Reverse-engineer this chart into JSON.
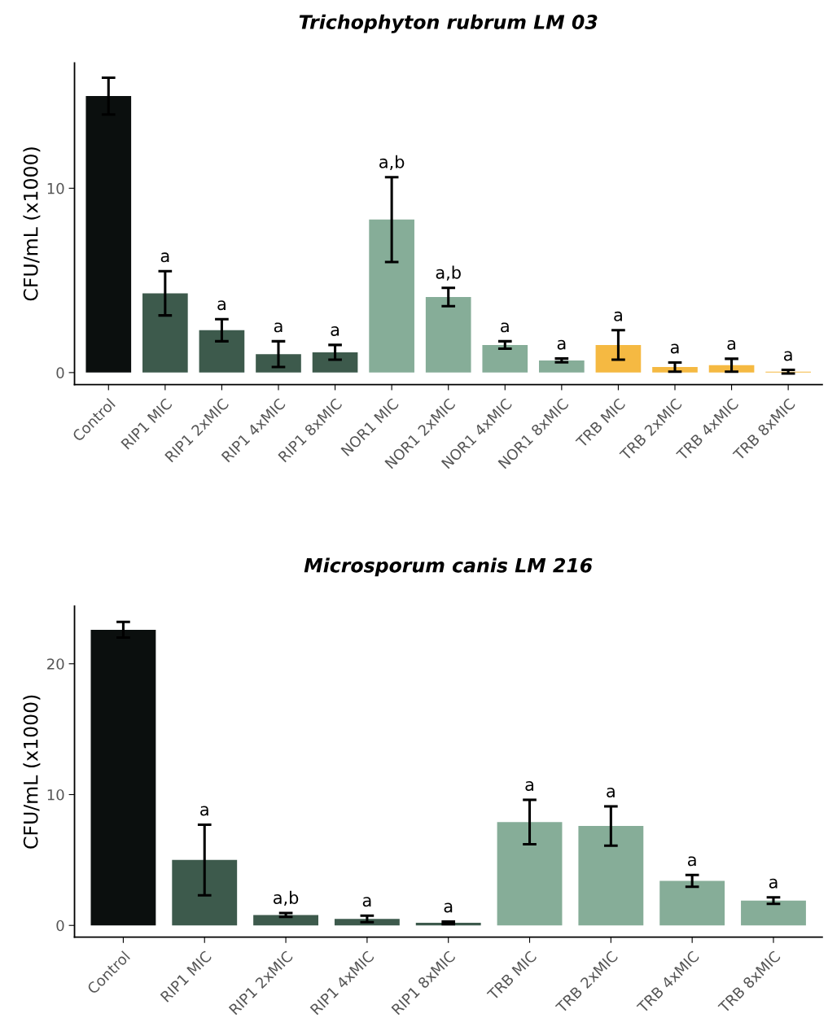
{
  "chart_data": [
    {
      "type": "bar",
      "title": "Trichophyton rubrum LM 03",
      "ylabel": "CFU/mL (x1000)",
      "categories": [
        "Control",
        "RIP1 MIC",
        "RIP1 2xMIC",
        "RIP1 4xMIC",
        "RIP1 8xMIC",
        "NOR1 MIC",
        "NOR1 2xMIC",
        "NOR1 4xMIC",
        "NOR1 8xMIC",
        "TRB MIC",
        "TRB 2xMIC",
        "TRB 4xMIC",
        "TRB 8xMIC"
      ],
      "values": [
        15.0,
        4.3,
        2.3,
        1.0,
        1.1,
        8.3,
        4.1,
        1.5,
        0.66,
        1.5,
        0.3,
        0.4,
        0.05
      ],
      "errors": [
        1.0,
        1.2,
        0.6,
        0.7,
        0.4,
        2.3,
        0.5,
        0.2,
        0.1,
        0.8,
        0.25,
        0.35,
        0.1
      ],
      "value_labels": [
        null,
        "a",
        "a",
        "a",
        "a",
        "a,b",
        "a,b",
        "a",
        "a",
        "a",
        "a",
        "a",
        "a"
      ],
      "colors": [
        "#0b0f0e",
        "#3d5a4c",
        "#3d5a4c",
        "#3d5a4c",
        "#3d5a4c",
        "#86ad98",
        "#86ad98",
        "#86ad98",
        "#86ad98",
        "#f5b942",
        "#f5b942",
        "#f5b942",
        "#f5b942"
      ],
      "ylim": [
        -0.65,
        16.8
      ],
      "yticks": [
        0,
        10
      ],
      "grid": false
    },
    {
      "type": "bar",
      "title": "Microsporum canis LM 216",
      "ylabel": "CFU/mL (x1000)",
      "categories": [
        "Control",
        "RIP1 MIC",
        "RIP1 2xMIC",
        "RIP1 4xMIC",
        "RIP1 8xMIC",
        "TRB MIC",
        "TRB 2xMIC",
        "TRB 4xMIC",
        "TRB 8xMIC"
      ],
      "values": [
        22.6,
        5.0,
        0.8,
        0.5,
        0.2,
        7.9,
        7.6,
        3.4,
        1.9
      ],
      "errors": [
        0.6,
        2.7,
        0.15,
        0.25,
        0.1,
        1.7,
        1.5,
        0.45,
        0.25
      ],
      "value_labels": [
        null,
        "a",
        "a,b",
        "a",
        "a",
        "a",
        "a",
        "a",
        "a"
      ],
      "colors": [
        "#0b0f0e",
        "#3d5a4c",
        "#3d5a4c",
        "#3d5a4c",
        "#3d5a4c",
        "#86ad98",
        "#86ad98",
        "#86ad98",
        "#86ad98"
      ],
      "ylim": [
        -0.9,
        24.4
      ],
      "yticks": [
        0,
        10,
        20
      ],
      "grid": false
    }
  ]
}
